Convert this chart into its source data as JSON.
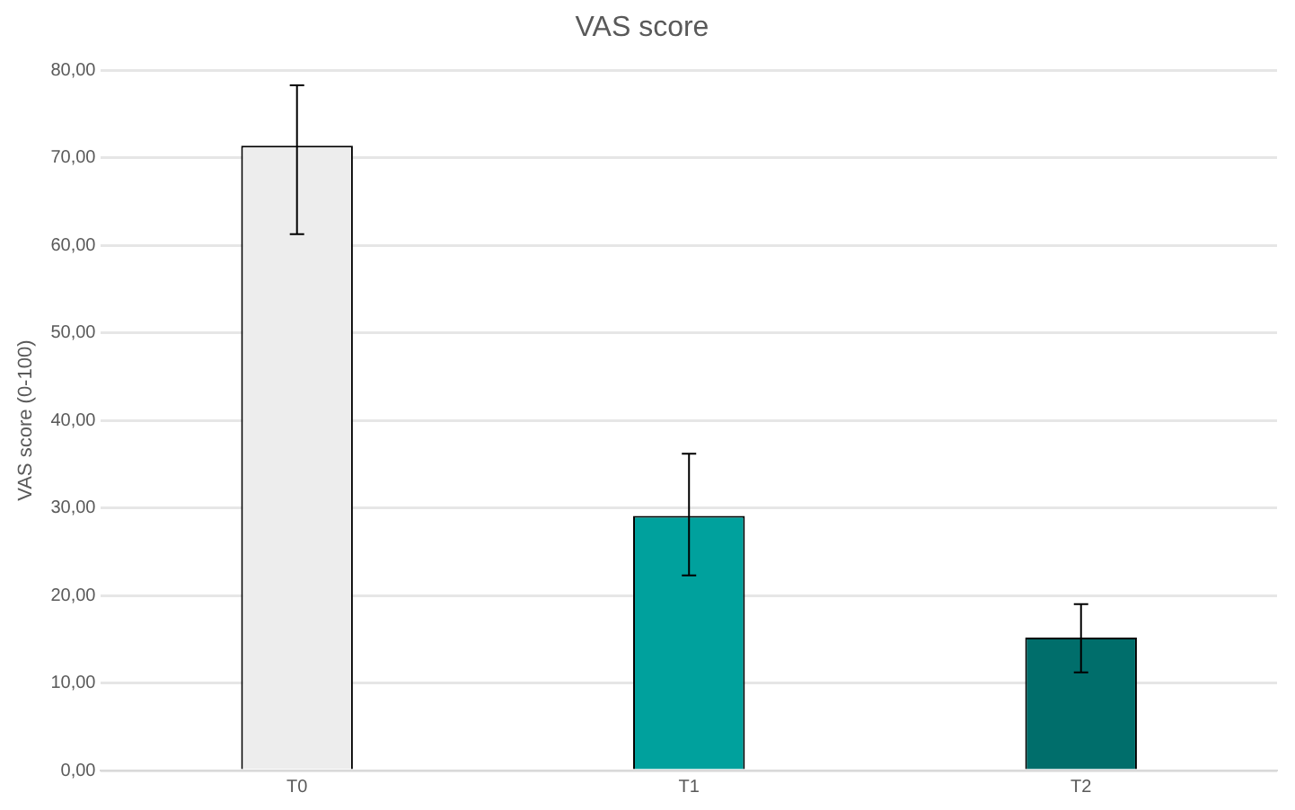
{
  "chart_data": {
    "type": "bar",
    "title": "VAS score",
    "ylabel": "VAS score (0-100)",
    "categories": [
      "T0",
      "T1",
      "T2"
    ],
    "values": [
      71.4,
      29.1,
      15.2
    ],
    "errors": [
      [
        61.3,
        78.3
      ],
      [
        22.3,
        36.2
      ],
      [
        11.2,
        19.0
      ]
    ],
    "colors": [
      "#ededed",
      "#00a19d",
      "#006e6b"
    ],
    "ylim": [
      0,
      80
    ],
    "yticks": [
      {
        "value": 0,
        "label": "0,00"
      },
      {
        "value": 10,
        "label": "10,00"
      },
      {
        "value": 20,
        "label": "20,00"
      },
      {
        "value": 30,
        "label": "30,00"
      },
      {
        "value": 40,
        "label": "40,00"
      },
      {
        "value": 50,
        "label": "50,00"
      },
      {
        "value": 60,
        "label": "60,00"
      },
      {
        "value": 70,
        "label": "70,00"
      },
      {
        "value": 80,
        "label": "80,00"
      }
    ],
    "grid": "y"
  }
}
